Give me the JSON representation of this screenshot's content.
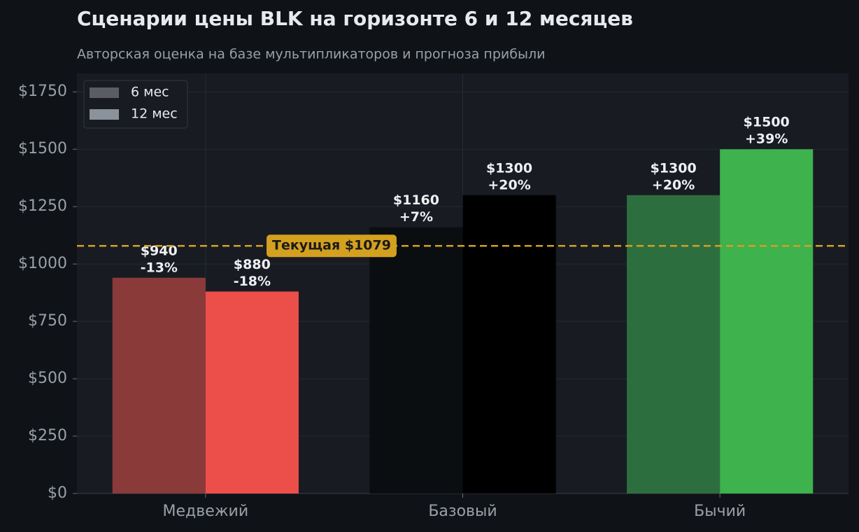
{
  "chart_data": {
    "type": "bar",
    "title": "Сценарии цены BLK на горизонте 6 и 12 месяцев",
    "subtitle": "Авторская оценка на базе мультипликаторов и прогноза прибыли",
    "categories": [
      "Медвежий",
      "Базовый",
      "Бычий"
    ],
    "series": [
      {
        "name": "6 мес",
        "color": "#5a5d66",
        "colors": [
          "#8b3a3a",
          "#0b0e11",
          "#2d6e3e"
        ],
        "values": [
          940,
          1160,
          1300
        ],
        "value_labels": [
          "$940",
          "$1160",
          "$1300"
        ],
        "change_labels": [
          "-13%",
          "+7%",
          "+20%"
        ]
      },
      {
        "name": "12 мес",
        "color": "#8b929b",
        "colors": [
          "#ec4f4a",
          "#000000",
          "#3db24d"
        ],
        "values": [
          880,
          1300,
          1500
        ],
        "value_labels": [
          "$880",
          "$1300",
          "$1500"
        ],
        "change_labels": [
          "-18%",
          "+20%",
          "+39%"
        ]
      }
    ],
    "reference": {
      "value": 1079,
      "label": "Текущая $1079",
      "color": "#d4a020"
    },
    "ylim": [
      0,
      1830
    ],
    "yticks": [
      {
        "value": 0,
        "label": "$0"
      },
      {
        "value": 250,
        "label": "$250"
      },
      {
        "value": 500,
        "label": "$500"
      },
      {
        "value": 750,
        "label": "$750"
      },
      {
        "value": 1000,
        "label": "$1000"
      },
      {
        "value": 1250,
        "label": "$1250"
      },
      {
        "value": 1500,
        "label": "$1500"
      },
      {
        "value": 1750,
        "label": "$1750"
      }
    ],
    "grid": true,
    "legend": "upper left"
  }
}
